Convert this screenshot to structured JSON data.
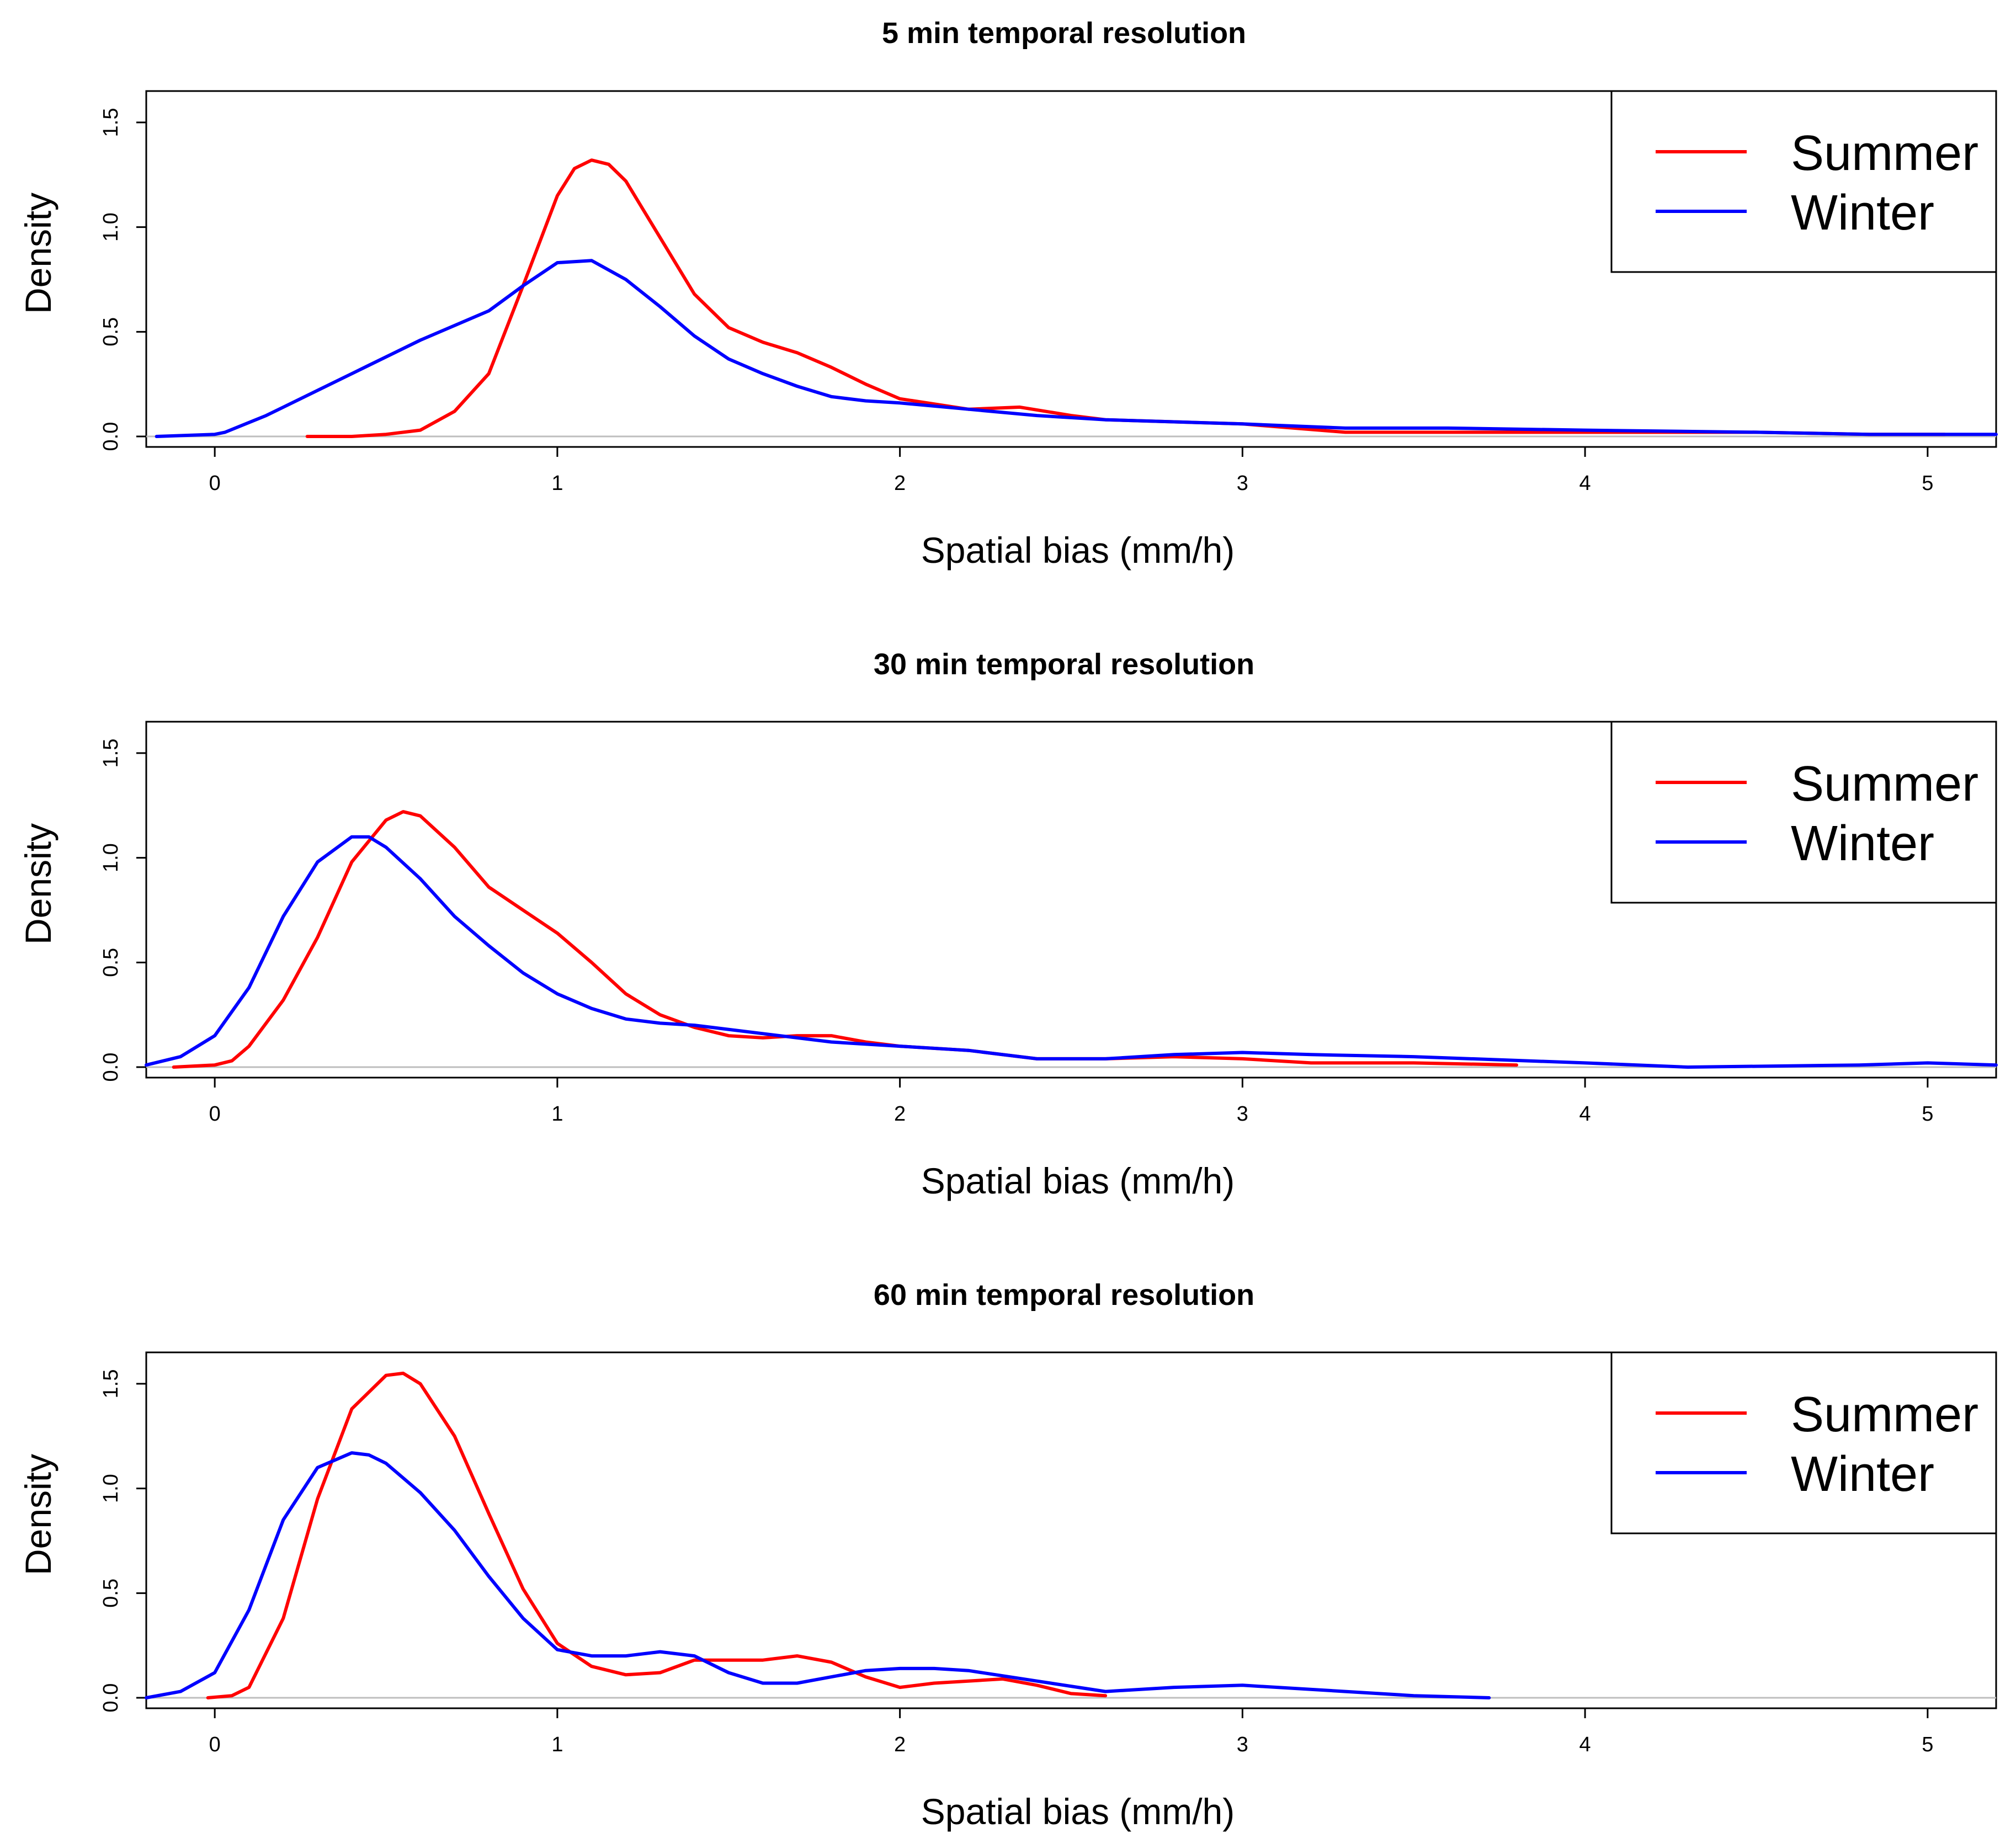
{
  "chart_data": [
    {
      "type": "line",
      "title": "5 min temporal resolution",
      "xlabel": "Spatial bias (mm/h)",
      "ylabel": "Density",
      "xlim": [
        -0.2,
        5.2
      ],
      "ylim": [
        -0.05,
        1.65
      ],
      "xticks": [
        "0",
        "1",
        "2",
        "3",
        "4",
        "5"
      ],
      "yticks": [
        "0.0",
        "0.5",
        "1.0",
        "1.5"
      ],
      "legend": {
        "position": "top-right",
        "entries": [
          "Summer",
          "Winter"
        ]
      },
      "colors": {
        "Summer": "#ff0000",
        "Winter": "#0000ff",
        "baseline": "#bebebe"
      },
      "series": [
        {
          "name": "Summer",
          "x": [
            0.27,
            0.4,
            0.5,
            0.6,
            0.7,
            0.8,
            0.9,
            1.0,
            1.05,
            1.1,
            1.15,
            1.2,
            1.3,
            1.4,
            1.5,
            1.6,
            1.7,
            1.8,
            1.9,
            2.0,
            2.2,
            2.35,
            2.5,
            2.6,
            2.8,
            3.0,
            3.3,
            3.6,
            4.0,
            4.5,
            4.83,
            5.0,
            5.05
          ],
          "y": [
            0.0,
            0.0,
            0.01,
            0.03,
            0.12,
            0.3,
            0.72,
            1.15,
            1.28,
            1.32,
            1.3,
            1.22,
            0.95,
            0.68,
            0.52,
            0.45,
            0.4,
            0.33,
            0.25,
            0.18,
            0.13,
            0.14,
            0.1,
            0.08,
            0.07,
            0.06,
            0.02,
            0.02,
            0.02,
            0.02,
            0.01,
            0.01,
            0.01
          ]
        },
        {
          "name": "Winter",
          "x": [
            -0.17,
            0.0,
            0.03,
            0.15,
            0.3,
            0.45,
            0.6,
            0.8,
            0.9,
            1.0,
            1.1,
            1.2,
            1.3,
            1.4,
            1.5,
            1.6,
            1.7,
            1.8,
            1.9,
            2.0,
            2.2,
            2.4,
            2.6,
            2.8,
            3.0,
            3.3,
            3.6,
            4.0,
            4.5,
            4.83,
            5.0,
            5.2
          ],
          "y": [
            0.0,
            0.01,
            0.02,
            0.1,
            0.22,
            0.34,
            0.46,
            0.6,
            0.72,
            0.83,
            0.84,
            0.75,
            0.62,
            0.48,
            0.37,
            0.3,
            0.24,
            0.19,
            0.17,
            0.16,
            0.13,
            0.1,
            0.08,
            0.07,
            0.06,
            0.04,
            0.04,
            0.03,
            0.02,
            0.01,
            0.01,
            0.01
          ]
        }
      ]
    },
    {
      "type": "line",
      "title": "30 min temporal resolution",
      "xlabel": "Spatial bias (mm/h)",
      "ylabel": "Density",
      "xlim": [
        -0.2,
        5.2
      ],
      "ylim": [
        -0.05,
        1.65
      ],
      "xticks": [
        "0",
        "1",
        "2",
        "3",
        "4",
        "5"
      ],
      "yticks": [
        "0.0",
        "0.5",
        "1.0",
        "1.5"
      ],
      "legend": {
        "position": "top-right",
        "entries": [
          "Summer",
          "Winter"
        ]
      },
      "colors": {
        "Summer": "#ff0000",
        "Winter": "#0000ff",
        "baseline": "#bebebe"
      },
      "series": [
        {
          "name": "Summer",
          "x": [
            -0.12,
            0.0,
            0.05,
            0.1,
            0.2,
            0.3,
            0.4,
            0.5,
            0.55,
            0.6,
            0.7,
            0.8,
            0.9,
            1.0,
            1.1,
            1.2,
            1.3,
            1.4,
            1.5,
            1.6,
            1.7,
            1.8,
            1.9,
            2.0,
            2.2,
            2.4,
            2.6,
            2.8,
            3.0,
            3.2,
            3.5,
            3.8
          ],
          "y": [
            0.0,
            0.01,
            0.03,
            0.1,
            0.32,
            0.62,
            0.98,
            1.18,
            1.22,
            1.2,
            1.05,
            0.86,
            0.75,
            0.64,
            0.5,
            0.35,
            0.25,
            0.19,
            0.15,
            0.14,
            0.15,
            0.15,
            0.12,
            0.1,
            0.08,
            0.04,
            0.04,
            0.05,
            0.04,
            0.02,
            0.02,
            0.01
          ]
        },
        {
          "name": "Winter",
          "x": [
            -0.2,
            -0.1,
            0.0,
            0.1,
            0.2,
            0.3,
            0.4,
            0.45,
            0.5,
            0.6,
            0.7,
            0.8,
            0.9,
            1.0,
            1.1,
            1.2,
            1.3,
            1.4,
            1.6,
            1.8,
            2.0,
            2.2,
            2.4,
            2.6,
            2.8,
            3.0,
            3.2,
            3.5,
            4.0,
            4.3,
            4.8,
            5.0,
            5.2
          ],
          "y": [
            0.01,
            0.05,
            0.15,
            0.38,
            0.72,
            0.98,
            1.1,
            1.1,
            1.05,
            0.9,
            0.72,
            0.58,
            0.45,
            0.35,
            0.28,
            0.23,
            0.21,
            0.2,
            0.16,
            0.12,
            0.1,
            0.08,
            0.04,
            0.04,
            0.06,
            0.07,
            0.06,
            0.05,
            0.02,
            0.0,
            0.01,
            0.02,
            0.01
          ]
        }
      ]
    },
    {
      "type": "line",
      "title": "60 min temporal resolution",
      "xlabel": "Spatial bias (mm/h)",
      "ylabel": "Density",
      "xlim": [
        -0.2,
        5.2
      ],
      "ylim": [
        -0.05,
        1.65
      ],
      "xticks": [
        "0",
        "1",
        "2",
        "3",
        "4",
        "5"
      ],
      "yticks": [
        "0.0",
        "0.5",
        "1.0",
        "1.5"
      ],
      "legend": {
        "position": "top-right",
        "entries": [
          "Summer",
          "Winter"
        ]
      },
      "colors": {
        "Summer": "#ff0000",
        "Winter": "#0000ff",
        "baseline": "#bebebe"
      },
      "series": [
        {
          "name": "Summer",
          "x": [
            -0.02,
            0.05,
            0.1,
            0.2,
            0.3,
            0.4,
            0.5,
            0.55,
            0.6,
            0.7,
            0.8,
            0.9,
            1.0,
            1.1,
            1.2,
            1.3,
            1.4,
            1.5,
            1.6,
            1.7,
            1.8,
            1.9,
            2.0,
            2.1,
            2.3,
            2.4,
            2.5,
            2.6
          ],
          "y": [
            0.0,
            0.01,
            0.05,
            0.38,
            0.95,
            1.38,
            1.54,
            1.55,
            1.5,
            1.25,
            0.88,
            0.52,
            0.26,
            0.15,
            0.11,
            0.12,
            0.18,
            0.18,
            0.18,
            0.2,
            0.17,
            0.1,
            0.05,
            0.07,
            0.09,
            0.06,
            0.02,
            0.01
          ]
        },
        {
          "name": "Winter",
          "x": [
            -0.2,
            -0.1,
            0.0,
            0.1,
            0.2,
            0.3,
            0.4,
            0.45,
            0.5,
            0.6,
            0.7,
            0.8,
            0.9,
            1.0,
            1.1,
            1.2,
            1.3,
            1.4,
            1.5,
            1.6,
            1.7,
            1.8,
            1.9,
            2.0,
            2.1,
            2.2,
            2.4,
            2.6,
            2.8,
            3.0,
            3.3,
            3.5,
            3.72
          ],
          "y": [
            0.0,
            0.03,
            0.12,
            0.42,
            0.85,
            1.1,
            1.17,
            1.16,
            1.12,
            0.98,
            0.8,
            0.58,
            0.38,
            0.23,
            0.2,
            0.2,
            0.22,
            0.2,
            0.12,
            0.07,
            0.07,
            0.1,
            0.13,
            0.14,
            0.14,
            0.13,
            0.08,
            0.03,
            0.05,
            0.06,
            0.03,
            0.01,
            0.0
          ]
        }
      ]
    }
  ]
}
